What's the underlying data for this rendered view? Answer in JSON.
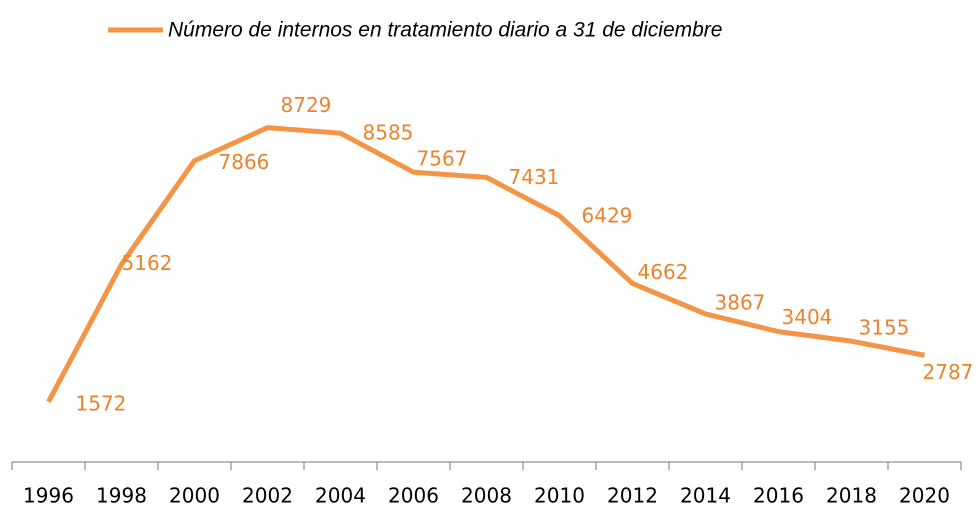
{
  "chart_data": {
    "type": "line",
    "categories": [
      "1996",
      "1998",
      "2000",
      "2002",
      "2004",
      "2006",
      "2008",
      "2010",
      "2012",
      "2014",
      "2016",
      "2018",
      "2020"
    ],
    "series": [
      {
        "name": "Número de internos en tratamiento diario a 31 de diciembre",
        "color": "#f39446",
        "values": [
          1572,
          5162,
          7866,
          8729,
          8585,
          7567,
          7431,
          6429,
          4662,
          3867,
          3404,
          3155,
          2787
        ]
      }
    ],
    "ylim": [
      0,
      10000
    ],
    "legend": "top"
  }
}
